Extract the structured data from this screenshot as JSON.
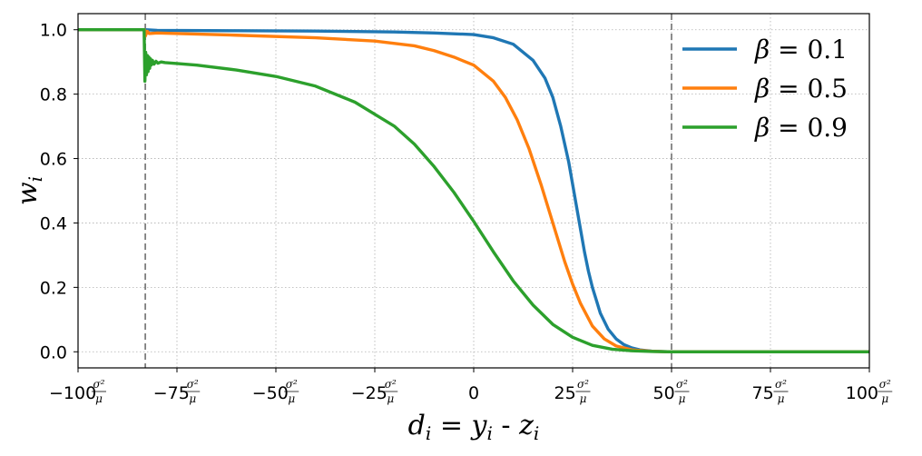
{
  "chart_data": {
    "type": "line",
    "title": "",
    "xlabel": "d_i = y_i - z_i",
    "xlabel_parts": {
      "d": "d",
      "i": "i",
      "eq": " = ",
      "y": "y",
      "minus": " - ",
      "z": "z"
    },
    "ylabel": "w_i",
    "ylabel_parts": {
      "w": "w",
      "i": "i"
    },
    "xlim": [
      -100,
      100
    ],
    "ylim": [
      -0.05,
      1.05
    ],
    "grid": true,
    "legend_position": "top-right",
    "x_ticks": [
      {
        "value": -100,
        "coef": "−100",
        "unit": true
      },
      {
        "value": -75,
        "coef": "−75",
        "unit": true
      },
      {
        "value": -50,
        "coef": "−50",
        "unit": true
      },
      {
        "value": -25,
        "coef": "−25",
        "unit": true
      },
      {
        "value": 0,
        "coef": "0",
        "unit": false
      },
      {
        "value": 25,
        "coef": "25",
        "unit": true
      },
      {
        "value": 50,
        "coef": "50",
        "unit": true
      },
      {
        "value": 75,
        "coef": "75",
        "unit": true
      },
      {
        "value": 100,
        "coef": "100",
        "unit": true
      }
    ],
    "x_tick_unit": {
      "numerator": "σ²",
      "denominator": "μ"
    },
    "y_ticks": [
      {
        "value": 0.0,
        "label": "0.0"
      },
      {
        "value": 0.2,
        "label": "0.2"
      },
      {
        "value": 0.4,
        "label": "0.4"
      },
      {
        "value": 0.6,
        "label": "0.6"
      },
      {
        "value": 0.8,
        "label": "0.8"
      },
      {
        "value": 1.0,
        "label": "1.0"
      }
    ],
    "vlines": [
      {
        "x": -83,
        "style": "dashed",
        "color": "#7f7f7f"
      },
      {
        "x": 50,
        "style": "dashed",
        "color": "#7f7f7f"
      }
    ],
    "series": [
      {
        "name": "β = 0.1",
        "beta": "0.1",
        "color": "#1f77b4",
        "x": [
          -100,
          -83,
          -80,
          -60,
          -40,
          -20,
          -10,
          0,
          5,
          10,
          15,
          18,
          20,
          22,
          24,
          26,
          27,
          28,
          29,
          30,
          31,
          32,
          34,
          36,
          38,
          40,
          42,
          45,
          48,
          50,
          60,
          80,
          100
        ],
        "y": [
          1.0,
          1.0,
          0.998,
          0.997,
          0.996,
          0.993,
          0.99,
          0.985,
          0.975,
          0.955,
          0.905,
          0.85,
          0.79,
          0.7,
          0.59,
          0.45,
          0.38,
          0.31,
          0.25,
          0.2,
          0.16,
          0.12,
          0.07,
          0.04,
          0.022,
          0.012,
          0.006,
          0.002,
          0.0005,
          0.0,
          0.0,
          0.0,
          0.0
        ]
      },
      {
        "name": "β = 0.5",
        "beta": "0.5",
        "color": "#ff7f0e",
        "x": [
          -100,
          -83.2,
          -83,
          -82.5,
          -82,
          -80,
          -60,
          -40,
          -25,
          -15,
          -10,
          -5,
          0,
          5,
          8,
          11,
          14,
          17,
          19,
          21,
          23,
          25,
          27,
          30,
          33,
          36,
          40,
          45,
          50,
          60,
          80,
          100
        ],
        "y": [
          1.0,
          1.0,
          0.98,
          0.995,
          0.988,
          0.99,
          0.983,
          0.975,
          0.965,
          0.95,
          0.935,
          0.915,
          0.89,
          0.84,
          0.79,
          0.72,
          0.63,
          0.52,
          0.44,
          0.36,
          0.28,
          0.21,
          0.15,
          0.08,
          0.04,
          0.018,
          0.006,
          0.0015,
          0.0,
          0.0,
          0.0,
          0.0
        ]
      },
      {
        "name": "β = 0.9",
        "beta": "0.9",
        "color": "#2ca02c",
        "x": [
          -100,
          -83.3,
          -83.1,
          -82.9,
          -82.7,
          -82.5,
          -82.3,
          -82.1,
          -81.9,
          -81.7,
          -81.5,
          -81.2,
          -80.8,
          -80.3,
          -79.8,
          -79,
          -78,
          -75,
          -70,
          -60,
          -50,
          -40,
          -30,
          -20,
          -15,
          -10,
          -5,
          0,
          5,
          10,
          15,
          20,
          25,
          30,
          35,
          40,
          45,
          50,
          60,
          80,
          100
        ],
        "y": [
          1.0,
          1.0,
          0.84,
          0.93,
          0.86,
          0.92,
          0.87,
          0.915,
          0.88,
          0.91,
          0.89,
          0.905,
          0.893,
          0.902,
          0.896,
          0.9,
          0.898,
          0.895,
          0.89,
          0.875,
          0.855,
          0.825,
          0.775,
          0.7,
          0.645,
          0.575,
          0.495,
          0.405,
          0.31,
          0.22,
          0.145,
          0.085,
          0.045,
          0.02,
          0.008,
          0.003,
          0.001,
          0.0,
          0.0,
          0.0,
          0.0
        ]
      }
    ]
  }
}
